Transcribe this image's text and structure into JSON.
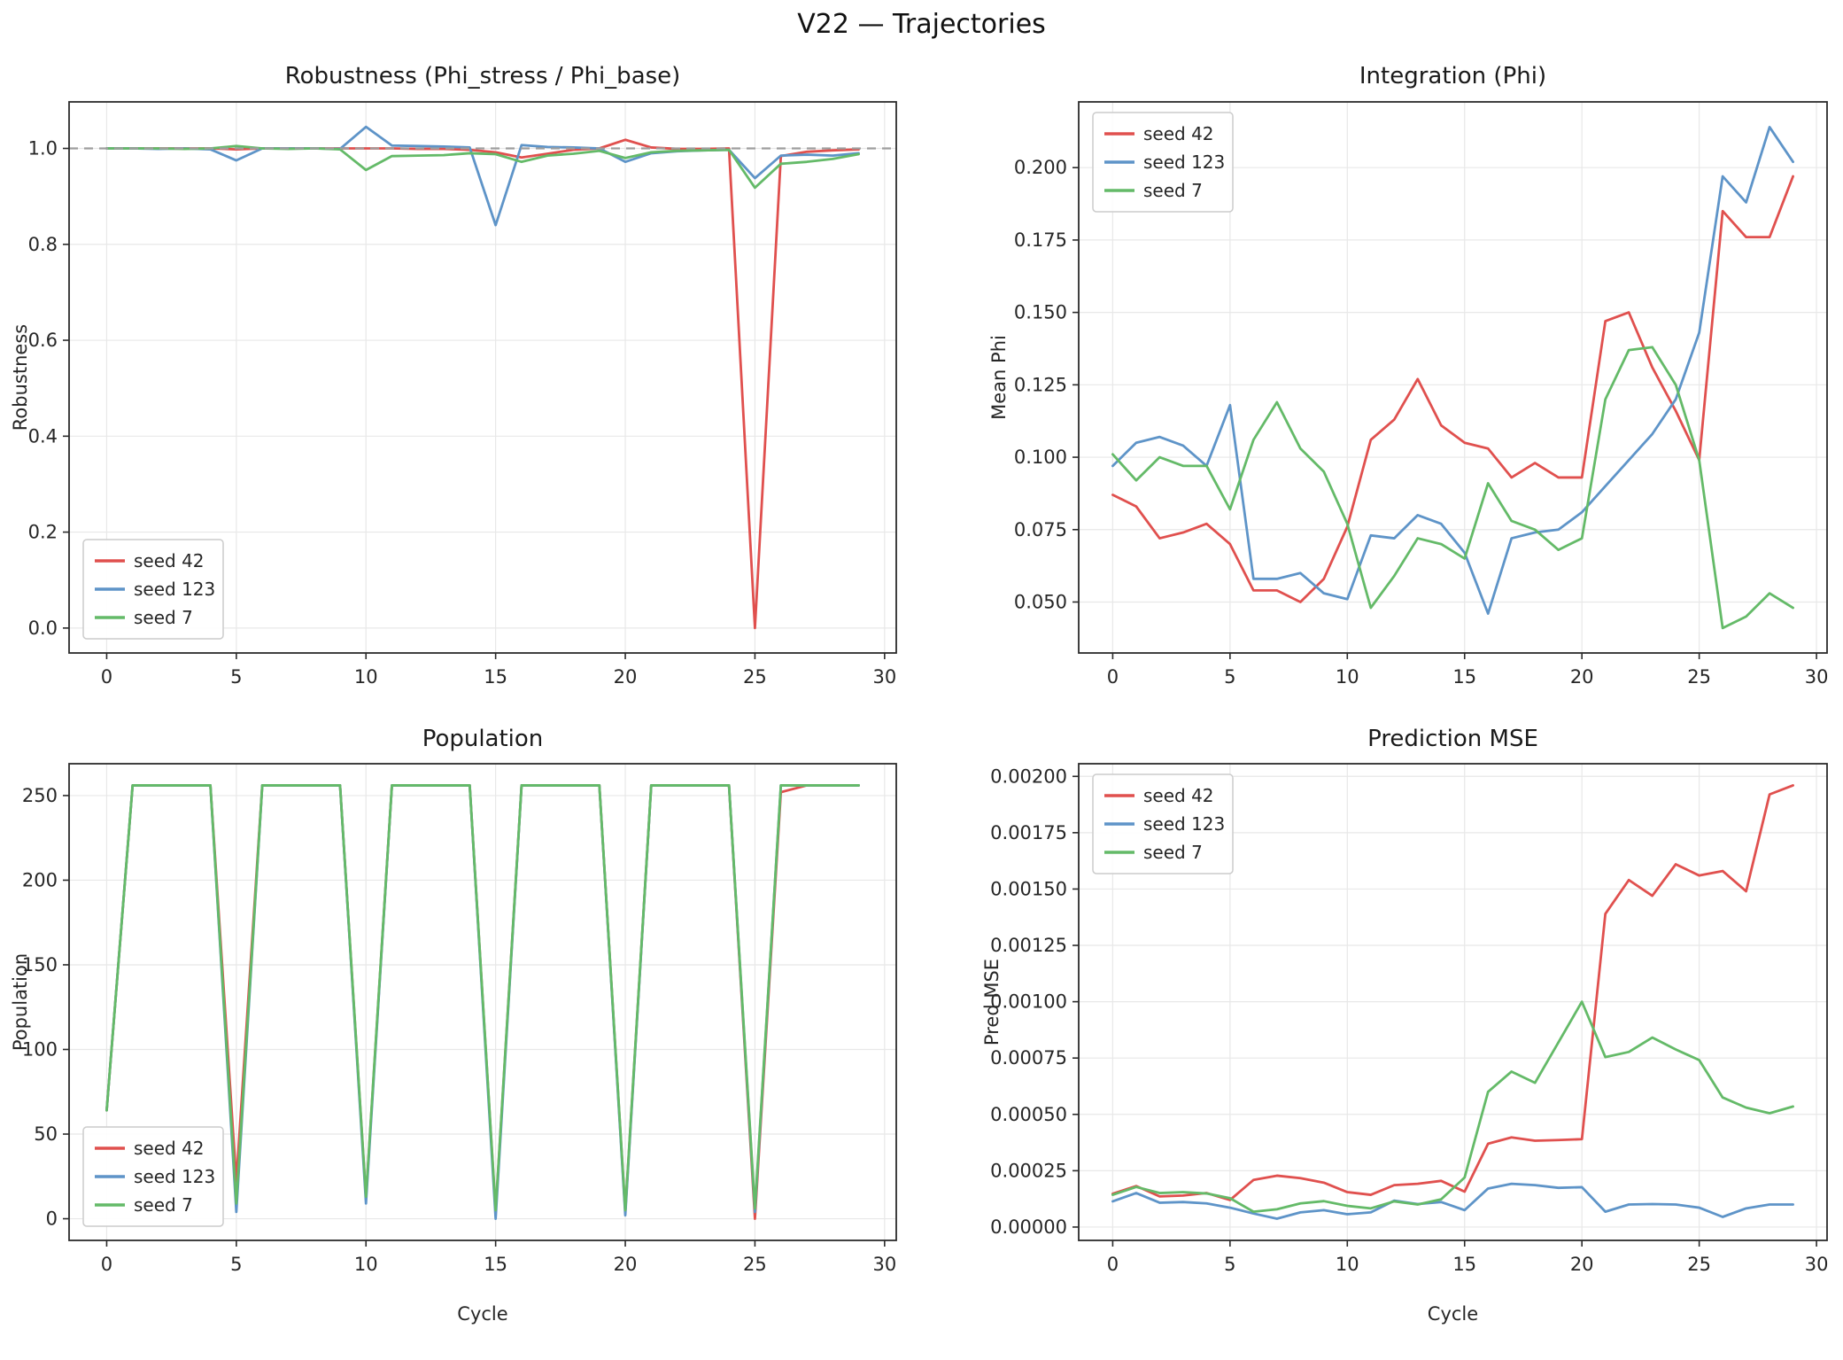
{
  "figure": {
    "title": "V22 — Trajectories"
  },
  "colors": {
    "seed_42": "#e0504e",
    "seed_123": "#5e94c8",
    "seed_7": "#64ba68",
    "grid": "#e8e8e8",
    "spine": "#2b2b2b",
    "ref_line": "#9e9e9e",
    "tick_text": "#262626"
  },
  "chart_data": [
    {
      "type": "line",
      "title": "Robustness (Phi_stress / Phi_base)",
      "ylabel": "Robustness",
      "xlabel": "",
      "grid": true,
      "legend_position": "lower left",
      "ref_line_y": 1.0,
      "xlim": [
        -1.45,
        30.45
      ],
      "ylim": [
        -0.052,
        1.097
      ],
      "x": [
        0,
        1,
        2,
        3,
        4,
        5,
        6,
        7,
        8,
        9,
        10,
        11,
        12,
        13,
        14,
        15,
        16,
        17,
        18,
        19,
        20,
        21,
        22,
        23,
        24,
        25,
        26,
        27,
        28,
        29
      ],
      "xticks": [
        0,
        5,
        10,
        15,
        20,
        25,
        30
      ],
      "xtick_labels": [
        "0",
        "5",
        "10",
        "15",
        "20",
        "25",
        "30"
      ],
      "yticks": [
        0.0,
        0.2,
        0.4,
        0.6,
        0.8,
        1.0
      ],
      "ytick_labels": [
        "0.0",
        "0.2",
        "0.4",
        "0.6",
        "0.8",
        "1.0"
      ],
      "series": [
        {
          "name": "seed 42",
          "color": "#e0504e",
          "values": [
            1.0,
            1.0,
            1.0,
            1.0,
            1.0,
            0.998,
            1.0,
            1.0,
            1.0,
            1.0,
            1.0,
            1.0,
            0.999,
            0.999,
            0.997,
            0.992,
            0.981,
            0.989,
            0.997,
            1.0,
            1.018,
            1.002,
            0.999,
            0.999,
            1.0,
            0.0,
            0.984,
            0.993,
            0.996,
            0.998
          ]
        },
        {
          "name": "seed 123",
          "color": "#5e94c8",
          "values": [
            1.0,
            1.0,
            0.999,
            1.0,
            0.998,
            0.975,
            1.0,
            1.0,
            1.0,
            0.999,
            1.045,
            1.006,
            1.005,
            1.004,
            1.002,
            0.84,
            1.007,
            1.003,
            1.002,
            1.0,
            0.972,
            0.99,
            0.994,
            0.996,
            0.997,
            0.938,
            0.985,
            0.987,
            0.985,
            0.99
          ]
        },
        {
          "name": "seed 7",
          "color": "#64ba68",
          "values": [
            1.0,
            1.0,
            1.0,
            0.999,
            1.0,
            1.005,
            1.0,
            0.999,
            1.0,
            0.998,
            0.955,
            0.984,
            0.985,
            0.986,
            0.99,
            0.988,
            0.972,
            0.985,
            0.989,
            0.995,
            0.98,
            0.992,
            0.995,
            0.996,
            0.997,
            0.918,
            0.968,
            0.972,
            0.978,
            0.988
          ]
        }
      ]
    },
    {
      "type": "line",
      "title": "Integration (Phi)",
      "ylabel": "Mean Phi",
      "xlabel": "",
      "grid": true,
      "legend_position": "upper left",
      "ref_line_y": null,
      "xlim": [
        -1.45,
        30.45
      ],
      "ylim": [
        0.0324,
        0.2227
      ],
      "x": [
        0,
        1,
        2,
        3,
        4,
        5,
        6,
        7,
        8,
        9,
        10,
        11,
        12,
        13,
        14,
        15,
        16,
        17,
        18,
        19,
        20,
        21,
        22,
        23,
        24,
        25,
        26,
        27,
        28,
        29
      ],
      "xticks": [
        0,
        5,
        10,
        15,
        20,
        25,
        30
      ],
      "xtick_labels": [
        "0",
        "5",
        "10",
        "15",
        "20",
        "25",
        "30"
      ],
      "yticks": [
        0.05,
        0.075,
        0.1,
        0.125,
        0.15,
        0.175,
        0.2
      ],
      "ytick_labels": [
        "0.050",
        "0.075",
        "0.100",
        "0.125",
        "0.150",
        "0.175",
        "0.200"
      ],
      "series": [
        {
          "name": "seed 42",
          "color": "#e0504e",
          "values": [
            0.087,
            0.083,
            0.072,
            0.074,
            0.077,
            0.07,
            0.054,
            0.054,
            0.05,
            0.058,
            0.076,
            0.106,
            0.113,
            0.127,
            0.111,
            0.105,
            0.103,
            0.093,
            0.098,
            0.093,
            0.093,
            0.147,
            0.15,
            0.131,
            0.116,
            0.099,
            0.185,
            0.176,
            0.176,
            0.197
          ]
        },
        {
          "name": "seed 123",
          "color": "#5e94c8",
          "values": [
            0.097,
            0.105,
            0.107,
            0.104,
            0.097,
            0.118,
            0.058,
            0.058,
            0.06,
            0.053,
            0.051,
            0.073,
            0.072,
            0.08,
            0.077,
            0.067,
            0.046,
            0.072,
            0.074,
            0.075,
            0.081,
            0.09,
            0.099,
            0.108,
            0.12,
            0.143,
            0.197,
            0.188,
            0.214,
            0.202
          ]
        },
        {
          "name": "seed 7",
          "color": "#64ba68",
          "values": [
            0.101,
            0.092,
            0.1,
            0.097,
            0.097,
            0.082,
            0.106,
            0.119,
            0.103,
            0.095,
            0.077,
            0.048,
            0.059,
            0.072,
            0.07,
            0.065,
            0.091,
            0.078,
            0.075,
            0.068,
            0.072,
            0.12,
            0.137,
            0.138,
            0.125,
            0.099,
            0.041,
            0.045,
            0.053,
            0.048
          ]
        }
      ]
    },
    {
      "type": "line",
      "title": "Population",
      "ylabel": "Population",
      "xlabel": "Cycle",
      "grid": true,
      "legend_position": "lower left",
      "ref_line_y": null,
      "xlim": [
        -1.45,
        30.45
      ],
      "ylim": [
        -12.8,
        268.8
      ],
      "x": [
        0,
        1,
        2,
        3,
        4,
        5,
        6,
        7,
        8,
        9,
        10,
        11,
        12,
        13,
        14,
        15,
        16,
        17,
        18,
        19,
        20,
        21,
        22,
        23,
        24,
        25,
        26,
        27,
        28,
        29
      ],
      "xticks": [
        0,
        5,
        10,
        15,
        20,
        25,
        30
      ],
      "xtick_labels": [
        "0",
        "5",
        "10",
        "15",
        "20",
        "25",
        "30"
      ],
      "yticks": [
        0,
        50,
        100,
        150,
        200,
        250
      ],
      "ytick_labels": [
        "0",
        "50",
        "100",
        "150",
        "200",
        "250"
      ],
      "series": [
        {
          "name": "seed 42",
          "color": "#e0504e",
          "values": [
            64,
            256,
            256,
            256,
            256,
            22,
            256,
            256,
            256,
            256,
            12,
            256,
            256,
            256,
            256,
            4,
            256,
            256,
            256,
            256,
            4,
            256,
            256,
            256,
            256,
            0,
            252,
            256,
            256,
            256
          ]
        },
        {
          "name": "seed 123",
          "color": "#5e94c8",
          "values": [
            64,
            256,
            256,
            256,
            256,
            4,
            256,
            256,
            256,
            256,
            9,
            256,
            256,
            256,
            256,
            0,
            256,
            256,
            256,
            256,
            2,
            256,
            256,
            256,
            256,
            4,
            256,
            256,
            256,
            256
          ]
        },
        {
          "name": "seed 7",
          "color": "#64ba68",
          "values": [
            64,
            256,
            256,
            256,
            256,
            9,
            256,
            256,
            256,
            256,
            13,
            256,
            256,
            256,
            256,
            5,
            256,
            256,
            256,
            256,
            5,
            256,
            256,
            256,
            256,
            6,
            256,
            256,
            256,
            256
          ]
        }
      ]
    },
    {
      "type": "line",
      "title": "Prediction MSE",
      "ylabel": "Pred MSE",
      "xlabel": "Cycle",
      "grid": true,
      "legend_position": "upper left",
      "ref_line_y": null,
      "xlim": [
        -1.45,
        30.45
      ],
      "ylim": [
        -5.92e-05,
        0.0020561
      ],
      "x": [
        0,
        1,
        2,
        3,
        4,
        5,
        6,
        7,
        8,
        9,
        10,
        11,
        12,
        13,
        14,
        15,
        16,
        17,
        18,
        19,
        20,
        21,
        22,
        23,
        24,
        25,
        26,
        27,
        28,
        29
      ],
      "xticks": [
        0,
        5,
        10,
        15,
        20,
        25,
        30
      ],
      "xtick_labels": [
        "0",
        "5",
        "10",
        "15",
        "20",
        "25",
        "30"
      ],
      "yticks": [
        0.0,
        0.00025,
        0.0005,
        0.00075,
        0.001,
        0.00125,
        0.0015,
        0.00175,
        0.002
      ],
      "ytick_labels": [
        "0.00000",
        "0.00025",
        "0.00050",
        "0.00075",
        "0.00100",
        "0.00125",
        "0.00150",
        "0.00175",
        "0.00200"
      ],
      "series": [
        {
          "name": "seed 42",
          "color": "#e0504e",
          "values": [
            0.000148,
            0.000182,
            0.000136,
            0.00014,
            0.000151,
            0.00012,
            0.000209,
            0.000228,
            0.000217,
            0.000197,
            0.000155,
            0.000143,
            0.000186,
            0.000192,
            0.000205,
            0.000157,
            0.00037,
            0.000398,
            0.000383,
            0.000386,
            0.00039,
            0.00139,
            0.00154,
            0.00147,
            0.00161,
            0.00156,
            0.00158,
            0.00149,
            0.00192,
            0.00196
          ]
        },
        {
          "name": "seed 123",
          "color": "#5e94c8",
          "values": [
            0.000114,
            0.000151,
            0.000108,
            0.000111,
            0.000105,
            8.6e-05,
            6e-05,
            3.7e-05,
            6.5e-05,
            7.5e-05,
            5.7e-05,
            6.5e-05,
            0.000117,
            0.000102,
            0.000111,
            7.5e-05,
            0.000171,
            0.000192,
            0.000186,
            0.000174,
            0.000177,
            6.8e-05,
            0.0001,
            0.000102,
            0.0001,
            8.6e-05,
            4.5e-05,
            8.3e-05,
            0.0001,
            0.0001
          ]
        },
        {
          "name": "seed 7",
          "color": "#64ba68",
          "values": [
            0.000143,
            0.000178,
            0.000151,
            0.000155,
            0.000149,
            0.000128,
            6.8e-05,
            7.9e-05,
            0.000105,
            0.000115,
            9.4e-05,
            8.3e-05,
            0.000114,
            0.0001,
            0.000123,
            0.00022,
            0.0006,
            0.00069,
            0.00064,
            0.00082,
            0.001,
            0.000754,
            0.000777,
            0.000841,
            0.000788,
            0.000741,
            0.000575,
            0.00053,
            0.000505,
            0.000535
          ]
        }
      ]
    }
  ]
}
